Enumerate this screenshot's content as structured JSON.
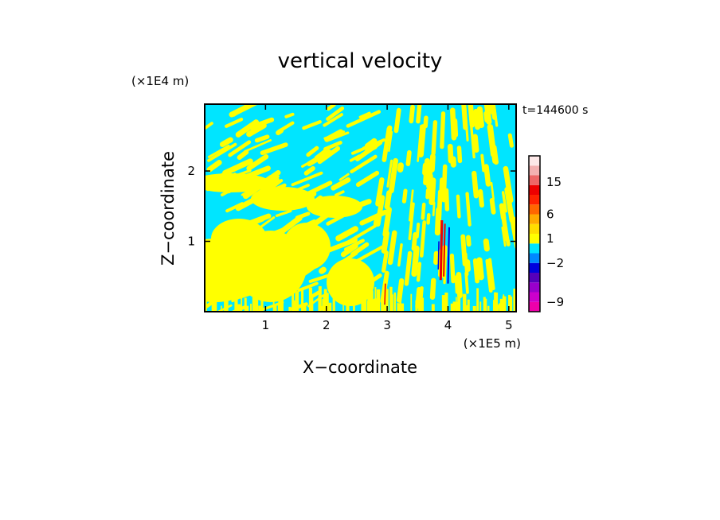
{
  "chart_data": {
    "type": "heatmap",
    "title": "vertical velocity",
    "xlabel": "X−coordinate",
    "ylabel": "Z−coordinate",
    "x_unit": "(×1E5 m)",
    "y_unit": "(×1E4 m)",
    "time_label": "t=144600 s",
    "xlim": [
      0,
      5.12
    ],
    "ylim": [
      0,
      2.95
    ],
    "x_ticks": [
      1,
      2,
      3,
      4,
      5
    ],
    "y_ticks": [
      1,
      2
    ],
    "colorbar": {
      "colors": [
        "#ee00aa",
        "#cc00cc",
        "#9900cc",
        "#5500bb",
        "#0000dd",
        "#0088ff",
        "#00e5ff",
        "#ffff00",
        "#ffdd00",
        "#ffaa00",
        "#ff6600",
        "#ff2200",
        "#ee0000",
        "#ee6666",
        "#f4b0b0",
        "#fde8e8"
      ],
      "tick_labels": [
        {
          "label": "−9",
          "index": 1
        },
        {
          "label": "−2",
          "index": 5
        },
        {
          "label": "1",
          "index": 7.5
        },
        {
          "label": "6",
          "index": 10
        },
        {
          "label": "15",
          "index": 13.3
        }
      ]
    },
    "field_colors": {
      "positive": "#ffff00",
      "negative": "#00e5ff",
      "strong_positive": "#ee0000",
      "strong_negative": "#0000dd"
    }
  }
}
